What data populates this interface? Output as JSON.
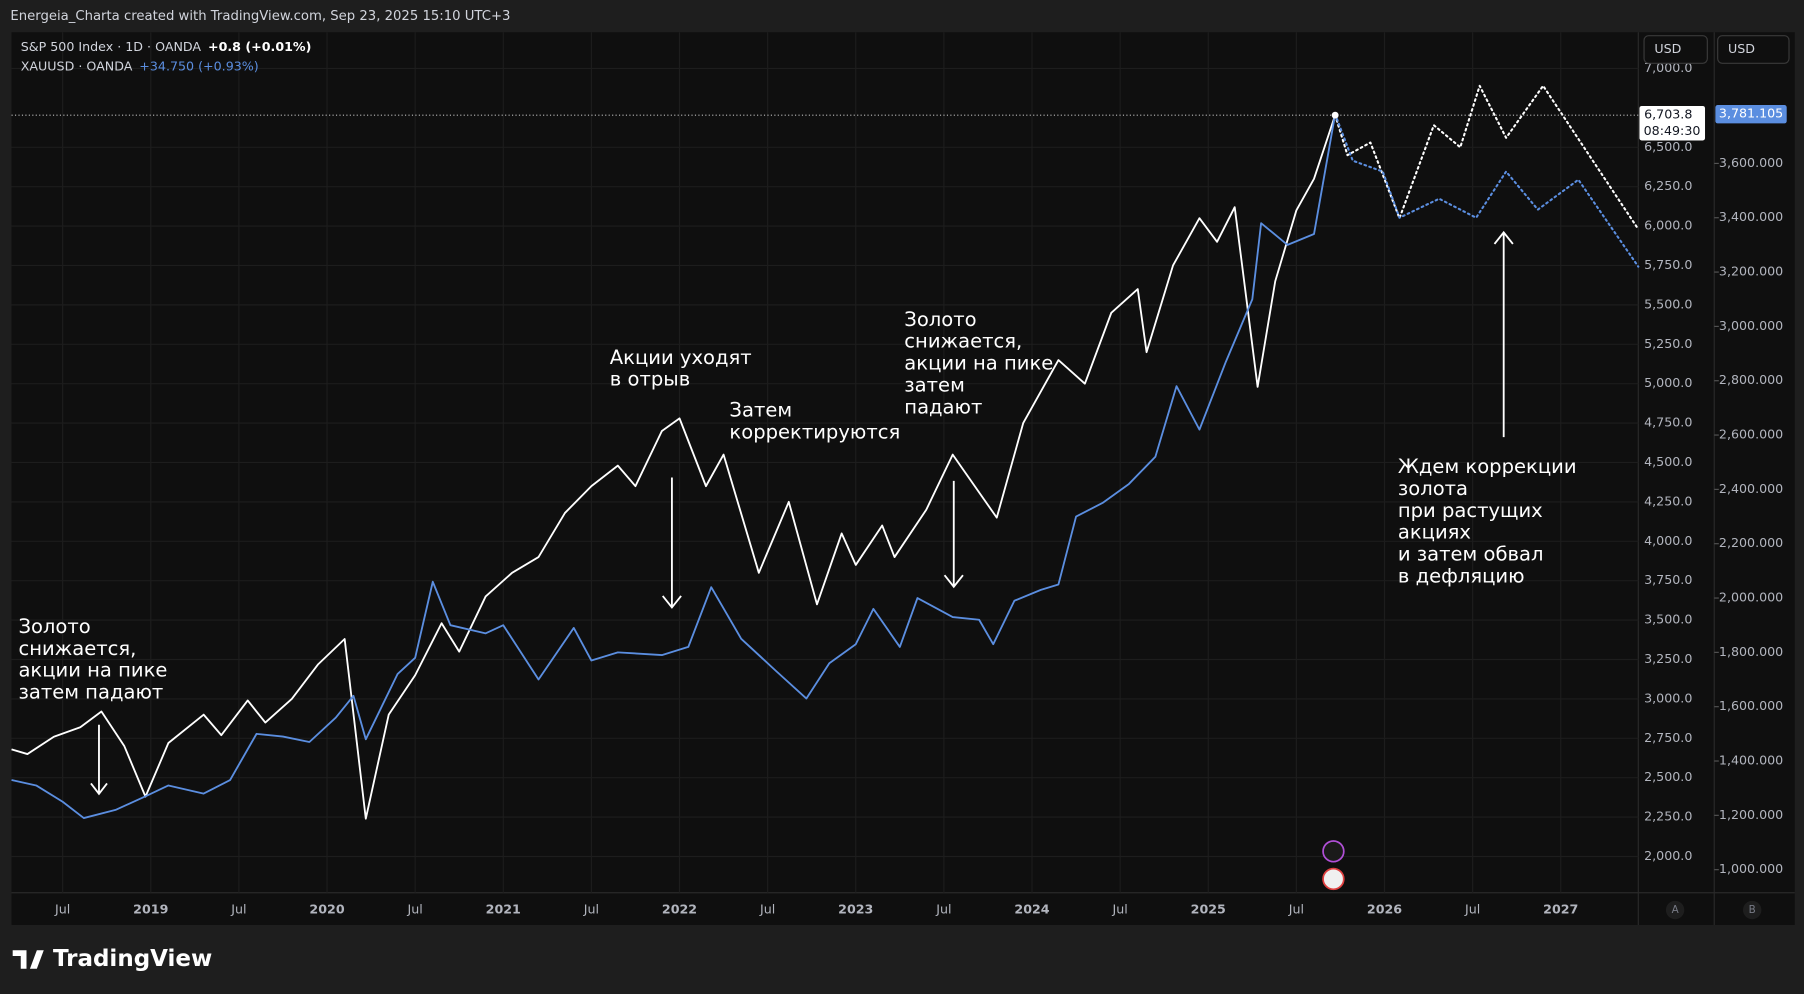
{
  "header": "Energeia_Charta created with TradingView.com, Sep 23, 2025 15:10 UTC+3",
  "footer": "TradingView",
  "chart_data": {
    "type": "line",
    "xlim": [
      2018.21,
      2027.44
    ],
    "xticks": [
      {
        "value": 2018.5,
        "label": "Jul"
      },
      2019,
      {
        "value": 2019.5,
        "label": "Jul"
      },
      2020,
      {
        "value": 2020.5,
        "label": "Jul"
      },
      2021,
      {
        "value": 2021.5,
        "label": "Jul"
      },
      2022,
      {
        "value": 2022.5,
        "label": "Jul"
      },
      2023,
      {
        "value": 2023.5,
        "label": "Jul"
      },
      2024,
      {
        "value": 2024.5,
        "label": "Jul"
      },
      2025,
      {
        "value": 2025.5,
        "label": "Jul"
      },
      2026,
      {
        "value": 2026.5,
        "label": "Jul"
      },
      2027
    ],
    "ylim": [
      1770,
      7230
    ],
    "yticks": [
      {
        "value": 2000,
        "label": "2,000.0"
      },
      {
        "value": 2250,
        "label": "2,250.0"
      },
      {
        "value": 2500,
        "label": "2,500.0"
      },
      {
        "value": 2750,
        "label": "2,750.0"
      },
      {
        "value": 3000,
        "label": "3,000.0"
      },
      {
        "value": 3250,
        "label": "3,250.0"
      },
      {
        "value": 3500,
        "label": "3,500.0"
      },
      {
        "value": 3750,
        "label": "3,750.0"
      },
      {
        "value": 4000,
        "label": "4,000.0"
      },
      {
        "value": 4250,
        "label": "4,250.0"
      },
      {
        "value": 4500,
        "label": "4,500.0"
      },
      {
        "value": 4750,
        "label": "4,750.0"
      },
      {
        "value": 5000,
        "label": "5,000.0"
      },
      {
        "value": 5250,
        "label": "5,250.0"
      },
      {
        "value": 5500,
        "label": "5,500.0"
      },
      {
        "value": 5750,
        "label": "5,750.0"
      },
      {
        "value": 6000,
        "label": "6,000.0"
      },
      {
        "value": 6250,
        "label": "6,250.0"
      },
      {
        "value": 6500,
        "label": "6,500.0"
      },
      {
        "value": 7000,
        "label": "7,000.0"
      }
    ],
    "y2lim": [
      915,
      4083
    ],
    "y2ticks": [
      {
        "value": 1000,
        "label": "1,000.000"
      },
      {
        "value": 1200,
        "label": "1,200.000"
      },
      {
        "value": 1400,
        "label": "1,400.000"
      },
      {
        "value": 1600,
        "label": "1,600.000"
      },
      {
        "value": 1800,
        "label": "1,800.000"
      },
      {
        "value": 2000,
        "label": "2,000.000"
      },
      {
        "value": 2200,
        "label": "2,200.000"
      },
      {
        "value": 2400,
        "label": "2,400.000"
      },
      {
        "value": 2600,
        "label": "2,600.000"
      },
      {
        "value": 2800,
        "label": "2,800.000"
      },
      {
        "value": 3000,
        "label": "3,000.000"
      },
      {
        "value": 3200,
        "label": "3,200.000"
      },
      {
        "value": 3400,
        "label": "3,400.000"
      },
      {
        "value": 3600,
        "label": "3,600.000"
      }
    ],
    "y_currency": "USD",
    "y2_currency": "USD",
    "grid": true,
    "series": [
      {
        "name": "S&P 500 Index · 1D · OANDA",
        "change": "+0.8 (+0.01%)",
        "color": "#ffffff",
        "axis": "y",
        "price_label": "6,703.8",
        "countdown": "08:49:30",
        "x": [
          2018.21,
          2018.3,
          2018.45,
          2018.6,
          2018.72,
          2018.85,
          2018.97,
          2019.1,
          2019.3,
          2019.4,
          2019.55,
          2019.65,
          2019.8,
          2019.95,
          2020.1,
          2020.22,
          2020.35,
          2020.5,
          2020.65,
          2020.75,
          2020.9,
          2021.05,
          2021.2,
          2021.35,
          2021.5,
          2021.65,
          2021.75,
          2021.9,
          2022.0,
          2022.15,
          2022.25,
          2022.45,
          2022.62,
          2022.78,
          2022.92,
          2023.0,
          2023.15,
          2023.22,
          2023.4,
          2023.55,
          2023.8,
          2023.95,
          2024.15,
          2024.3,
          2024.45,
          2024.6,
          2024.65,
          2024.8,
          2024.95,
          2025.05,
          2025.15,
          2025.28,
          2025.38,
          2025.5,
          2025.6,
          2025.72
        ],
        "values": [
          2680,
          2650,
          2760,
          2820,
          2920,
          2700,
          2380,
          2720,
          2900,
          2770,
          2990,
          2850,
          3000,
          3220,
          3380,
          2240,
          2900,
          3150,
          3480,
          3300,
          3650,
          3800,
          3900,
          4180,
          4350,
          4480,
          4350,
          4700,
          4780,
          4350,
          4550,
          3800,
          4250,
          3600,
          4050,
          3850,
          4100,
          3900,
          4200,
          4550,
          4150,
          4750,
          5150,
          5000,
          5450,
          5600,
          5200,
          5750,
          6050,
          5900,
          6120,
          4980,
          5650,
          6100,
          6300,
          6703.8
        ]
      },
      {
        "name": "XAUUSD · OANDA",
        "change": "+34.750 (+0.93%)",
        "color": "#5b8ee0",
        "axis": "y2",
        "price_label": "3,781.105",
        "x": [
          2018.21,
          2018.35,
          2018.5,
          2018.62,
          2018.8,
          2018.97,
          2019.1,
          2019.3,
          2019.45,
          2019.6,
          2019.75,
          2019.9,
          2020.05,
          2020.15,
          2020.22,
          2020.4,
          2020.5,
          2020.6,
          2020.7,
          2020.9,
          2021.0,
          2021.2,
          2021.4,
          2021.5,
          2021.65,
          2021.9,
          2022.05,
          2022.18,
          2022.35,
          2022.55,
          2022.72,
          2022.85,
          2023.0,
          2023.1,
          2023.25,
          2023.35,
          2023.55,
          2023.7,
          2023.78,
          2023.9,
          2024.05,
          2024.15,
          2024.25,
          2024.4,
          2024.55,
          2024.7,
          2024.82,
          2024.95,
          2025.1,
          2025.25,
          2025.3,
          2025.45,
          2025.6,
          2025.72
        ],
        "values": [
          1330,
          1310,
          1250,
          1190,
          1220,
          1270,
          1310,
          1280,
          1330,
          1500,
          1490,
          1470,
          1560,
          1640,
          1480,
          1720,
          1780,
          2060,
          1900,
          1870,
          1900,
          1700,
          1890,
          1770,
          1800,
          1790,
          1820,
          2040,
          1850,
          1730,
          1630,
          1760,
          1830,
          1960,
          1820,
          2000,
          1930,
          1920,
          1830,
          1990,
          2030,
          2050,
          2300,
          2350,
          2420,
          2520,
          2780,
          2620,
          2870,
          3100,
          3380,
          3300,
          3340,
          3781.105
        ]
      },
      {
        "color": "#ffffff",
        "axis": "y",
        "style": "dotted",
        "x": [
          2025.72,
          2025.79,
          2025.92,
          2026.085,
          2026.28,
          2026.43,
          2026.54,
          2026.69,
          2026.9,
          2027.44
        ],
        "values": [
          6703.8,
          6450,
          6530,
          6050,
          6640,
          6500,
          6890,
          6560,
          6890,
          5980
        ]
      },
      {
        "color": "#5b8ee0",
        "axis": "y2",
        "style": "dotted",
        "x": [
          2025.72,
          2025.82,
          2025.99,
          2026.085,
          2026.31,
          2026.52,
          2026.69,
          2026.87,
          2027.1,
          2027.44
        ],
        "values": [
          3781.105,
          3610,
          3570,
          3400,
          3470,
          3400,
          3570,
          3430,
          3540,
          3220
        ]
      }
    ],
    "annotations": [
      {
        "lines": [
          "Золото",
          "снижается,",
          "акции на пике",
          "затем падают"
        ]
      },
      {
        "lines": [
          "Акции уходят",
          "в отрыв"
        ]
      },
      {
        "lines": [
          "Затем",
          "корректируются"
        ]
      },
      {
        "lines": [
          "Золото",
          "снижается,",
          "акции на пике",
          "затем",
          "падают"
        ]
      },
      {
        "lines": [
          "Ждем коррекции",
          "золота",
          "при растущих",
          "акциях",
          "и затем обвал",
          "в дефляцию"
        ]
      }
    ],
    "scale_buttons": [
      "A",
      "B"
    ]
  }
}
